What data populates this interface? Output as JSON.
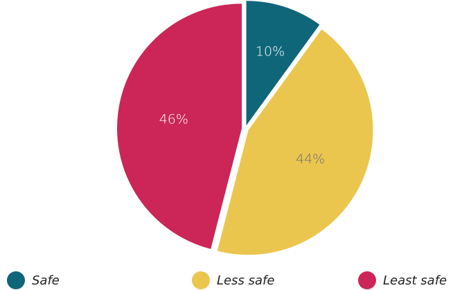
{
  "chart_data": {
    "type": "pie",
    "categories": [
      "Safe",
      "Less safe",
      "Least safe"
    ],
    "values": [
      10,
      44,
      46
    ],
    "labels": [
      "10%",
      "44%",
      "46%"
    ],
    "colors": [
      "#0f6679",
      "#ebc64f",
      "#cb2657"
    ],
    "label_colors": [
      "#ffffff",
      "#6d6d6d",
      "#ffffff"
    ],
    "legend_placement": "bottom",
    "title": "",
    "legend": {
      "items": [
        {
          "label": "Safe",
          "color": "#0f6679"
        },
        {
          "label": "Less safe",
          "color": "#ebc64f"
        },
        {
          "label": "Least safe",
          "color": "#cb2657"
        }
      ]
    }
  }
}
